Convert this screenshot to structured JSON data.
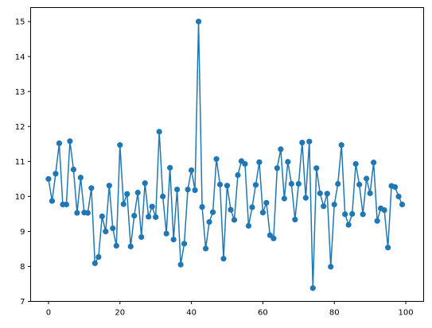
{
  "chart_data": {
    "type": "line",
    "marker": "circle",
    "grid": false,
    "colors": {
      "series": "#1f77b4",
      "axes": "#000000",
      "background": "#ffffff"
    },
    "xlim": [
      -5,
      105
    ],
    "ylim": [
      7,
      15.4
    ],
    "xticks": [
      0,
      20,
      40,
      60,
      80,
      100
    ],
    "yticks": [
      7,
      8,
      9,
      10,
      11,
      12,
      13,
      14,
      15
    ],
    "xtick_labels": [
      "0",
      "20",
      "40",
      "60",
      "80",
      "100"
    ],
    "ytick_labels": [
      "7",
      "8",
      "9",
      "10",
      "11",
      "12",
      "13",
      "14",
      "15"
    ],
    "series": [
      {
        "x": [
          0,
          1,
          2,
          3,
          4,
          5,
          6,
          7,
          8,
          9,
          10,
          11,
          12,
          13,
          14,
          15,
          16,
          17,
          18,
          19,
          20,
          21,
          22,
          23,
          24,
          25,
          26,
          27,
          28,
          29,
          30,
          31,
          32,
          33,
          34,
          35,
          36,
          37,
          38,
          39,
          40,
          41,
          42,
          43,
          44,
          45,
          46,
          47,
          48,
          49,
          50,
          51,
          52,
          53,
          54,
          55,
          56,
          57,
          58,
          59,
          60,
          61,
          62,
          63,
          64,
          65,
          66,
          67,
          68,
          69,
          70,
          71,
          72,
          73,
          74,
          75,
          76,
          77,
          78,
          79,
          80,
          81,
          82,
          83,
          84,
          85,
          86,
          87,
          88,
          89,
          90,
          91,
          92,
          93,
          94,
          95,
          96,
          97,
          98,
          99
        ],
        "y": [
          10.5,
          9.87,
          10.65,
          11.52,
          9.77,
          9.77,
          11.58,
          10.77,
          9.53,
          10.54,
          9.54,
          9.53,
          10.24,
          8.09,
          8.27,
          9.43,
          9.0,
          10.31,
          9.09,
          8.59,
          11.47,
          9.78,
          10.07,
          8.57,
          9.45,
          10.11,
          8.84,
          10.38,
          9.42,
          9.71,
          9.41,
          11.85,
          10.0,
          8.94,
          10.82,
          8.77,
          10.2,
          8.05,
          8.65,
          10.2,
          10.75,
          10.18,
          15.0,
          9.7,
          8.51,
          9.27,
          9.55,
          11.07,
          10.34,
          8.22,
          10.31,
          9.62,
          9.33,
          10.61,
          11.01,
          10.93,
          9.16,
          9.69,
          10.33,
          10.98,
          9.54,
          9.82,
          8.89,
          8.8,
          10.81,
          11.35,
          9.94,
          10.99,
          10.36,
          9.34,
          10.36,
          11.54,
          9.96,
          11.57,
          7.38,
          10.81,
          10.09,
          9.72,
          10.08,
          7.99,
          9.77,
          10.36,
          11.47,
          9.49,
          9.19,
          9.5,
          10.93,
          10.34,
          9.49,
          10.51,
          10.09,
          10.97,
          9.3,
          9.66,
          9.61,
          8.54,
          10.3,
          10.27,
          10.0,
          9.77
        ]
      }
    ]
  }
}
